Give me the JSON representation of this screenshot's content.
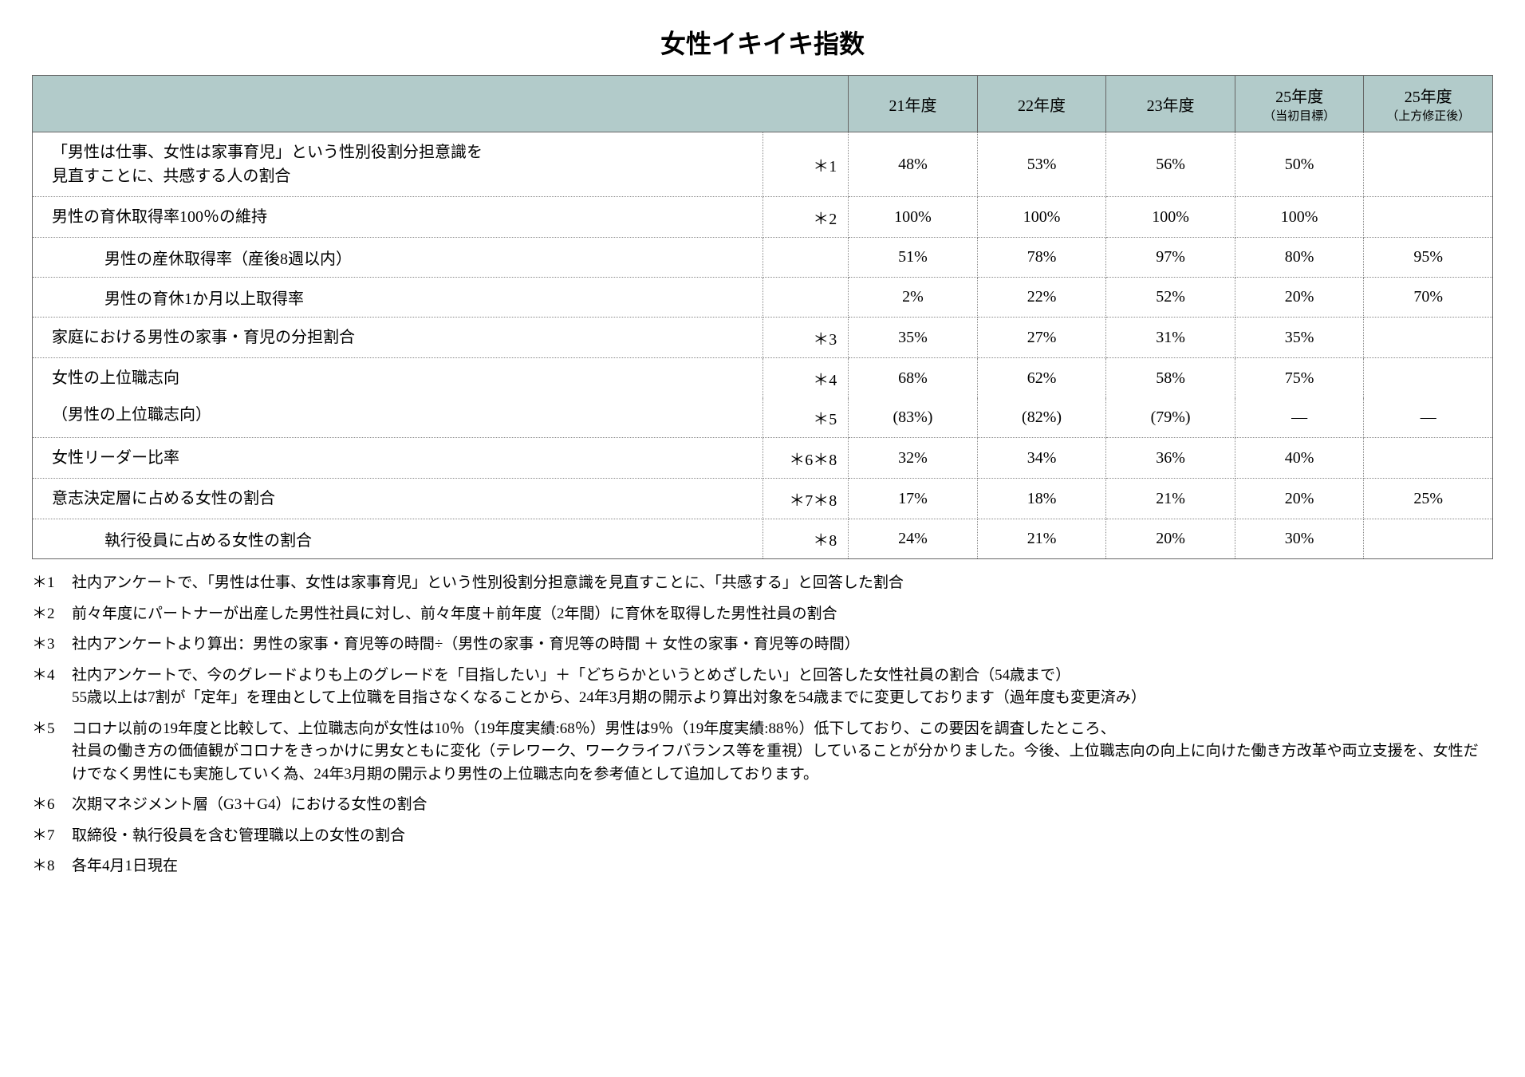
{
  "title": "女性イキイキ指数",
  "columns": {
    "c1": "21年度",
    "c2": "22年度",
    "c3": "23年度",
    "c4": "25年度",
    "c4sub": "（当初目標）",
    "c5": "25年度",
    "c5sub": "（上方修正後）"
  },
  "rows": {
    "r1": {
      "label": "「男性は仕事、女性は家事育児」という性別役割分担意識を\n見直すことに、共感する人の割合",
      "note": "＊1",
      "v1": "48%",
      "v2": "53%",
      "v3": "56%",
      "v4": "50%",
      "v5": ""
    },
    "r2": {
      "label": "男性の育休取得率100％の維持",
      "note": "＊2",
      "v1": "100%",
      "v2": "100%",
      "v3": "100%",
      "v4": "100%",
      "v5": ""
    },
    "r3": {
      "label": "男性の産休取得率（産後8週以内）",
      "note": "",
      "v1": "51%",
      "v2": "78%",
      "v3": "97%",
      "v4": "80%",
      "v5": "95%"
    },
    "r4": {
      "label": "男性の育休1か月以上取得率",
      "note": "",
      "v1": "2%",
      "v2": "22%",
      "v3": "52%",
      "v4": "20%",
      "v5": "70%"
    },
    "r5": {
      "label": "家庭における男性の家事・育児の分担割合",
      "note": "＊3",
      "v1": "35%",
      "v2": "27%",
      "v3": "31%",
      "v4": "35%",
      "v5": ""
    },
    "r6": {
      "label": "女性の上位職志向",
      "note": "＊4",
      "v1": "68%",
      "v2": "62%",
      "v3": "58%",
      "v4": "75%",
      "v5": ""
    },
    "r7": {
      "label": "（男性の上位職志向）",
      "note": "＊5",
      "v1": "(83%)",
      "v2": "(82%)",
      "v3": "(79%)",
      "v4": "―",
      "v5": "―"
    },
    "r8": {
      "label": "女性リーダー比率",
      "note": "＊6＊8",
      "v1": "32%",
      "v2": "34%",
      "v3": "36%",
      "v4": "40%",
      "v5": ""
    },
    "r9": {
      "label": "意志決定層に占める女性の割合",
      "note": "＊7＊8",
      "v1": "17%",
      "v2": "18%",
      "v3": "21%",
      "v4": "20%",
      "v5": "25%"
    },
    "r10": {
      "label": "執行役員に占める女性の割合",
      "note": "＊8",
      "v1": "24%",
      "v2": "21%",
      "v3": "20%",
      "v4": "30%",
      "v5": ""
    }
  },
  "footnotes": {
    "f1": {
      "mark": "＊1",
      "text": "社内アンケートで、「男性は仕事、女性は家事育児」という性別役割分担意識を見直すことに、「共感する」と回答した割合"
    },
    "f2": {
      "mark": "＊2",
      "text": "前々年度にパートナーが出産した男性社員に対し、前々年度＋前年度（2年間）に育休を取得した男性社員の割合"
    },
    "f3": {
      "mark": "＊3",
      "text": "社内アンケートより算出：男性の家事・育児等の時間÷（男性の家事・育児等の時間 ＋ 女性の家事・育児等の時間）"
    },
    "f4": {
      "mark": "＊4",
      "text": "社内アンケートで、今のグレードよりも上のグレードを「目指したい」＋「どちらかというとめざしたい」と回答した女性社員の割合（54歳まで）\n55歳以上は7割が「定年」を理由として上位職を目指さなくなることから、24年3月期の開示より算出対象を54歳までに変更しております（過年度も変更済み）"
    },
    "f5": {
      "mark": "＊5",
      "text": "コロナ以前の19年度と比較して、上位職志向が女性は10％（19年度実績:68％）男性は9％（19年度実績:88％）低下しており、この要因を調査したところ、\n社員の働き方の価値観がコロナをきっかけに男女ともに変化（テレワーク、ワークライフバランス等を重視）していることが分かりました。今後、上位職志向の向上に向けた働き方改革や両立支援を、女性だけでなく男性にも実施していく為、24年3月期の開示より男性の上位職志向を参考値として追加しております。"
    },
    "f6": {
      "mark": "＊6",
      "text": "次期マネジメント層（G3＋G4）における女性の割合"
    },
    "f7": {
      "mark": "＊7",
      "text": "取締役・執行役員を含む管理職以上の女性の割合"
    },
    "f8": {
      "mark": "＊8",
      "text": "各年4月1日現在"
    }
  }
}
